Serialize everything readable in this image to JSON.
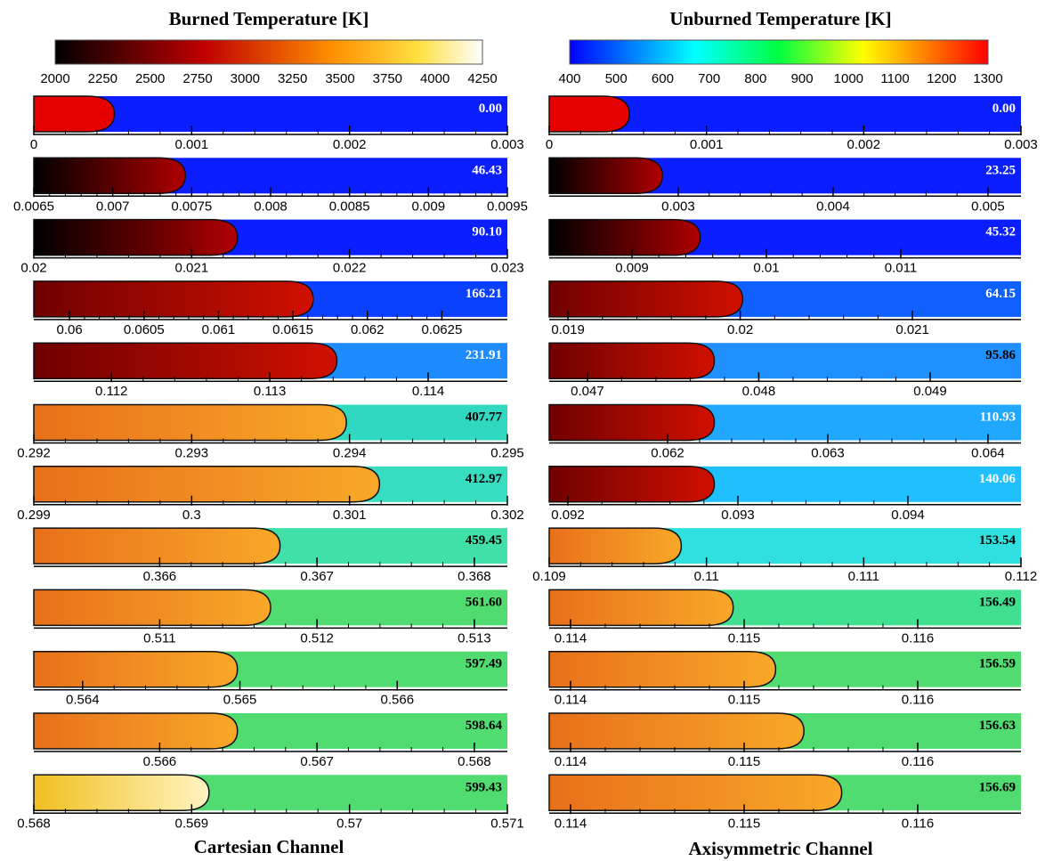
{
  "left": {
    "colorbar": {
      "title": "Burned Temperature [K]",
      "lim": [
        2000,
        4250
      ],
      "ticks": [
        2000,
        2250,
        2500,
        2750,
        3000,
        3250,
        3500,
        3750,
        4000,
        4250
      ]
    },
    "caption": "Cartesian Channel",
    "panels": [
      {
        "time": "0.00",
        "xlim": [
          0,
          0.003
        ],
        "xticks": [
          0,
          0.001,
          0.002,
          0.003
        ]
      },
      {
        "time": "46.43",
        "xlim": [
          0.0065,
          0.0095
        ],
        "xticks": [
          0.0065,
          0.007,
          0.0075,
          0.008,
          0.0085,
          0.009,
          0.0095
        ]
      },
      {
        "time": "90.10",
        "xlim": [
          0.02,
          0.023
        ],
        "xticks": [
          0.02,
          0.021,
          0.022,
          0.023
        ]
      },
      {
        "time": "166.21",
        "xlim": [
          0.05976,
          0.06294
        ],
        "xticks": [
          0.06,
          0.0605,
          0.061,
          0.0615,
          0.062,
          0.0625
        ]
      },
      {
        "time": "231.91",
        "xlim": [
          0.11151,
          0.1145
        ],
        "xticks": [
          0.112,
          0.113,
          0.114
        ]
      },
      {
        "time": "407.77",
        "xlim": [
          0.292,
          0.295
        ],
        "xticks": [
          0.292,
          0.293,
          0.294,
          0.295
        ]
      },
      {
        "time": "412.97",
        "xlim": [
          0.299,
          0.302
        ],
        "xticks": [
          0.299,
          0.3,
          0.301,
          0.302
        ]
      },
      {
        "time": "459.45",
        "xlim": [
          0.3652,
          0.36821
        ],
        "xticks": [
          0.366,
          0.367,
          0.368
        ]
      },
      {
        "time": "561.60",
        "xlim": [
          0.5102,
          0.51321
        ],
        "xticks": [
          0.511,
          0.512,
          0.513
        ]
      },
      {
        "time": "597.49",
        "xlim": [
          0.56369,
          0.5667
        ],
        "xticks": [
          0.564,
          0.565,
          0.566
        ]
      },
      {
        "time": "598.64",
        "xlim": [
          0.5652,
          0.56821
        ],
        "xticks": [
          0.566,
          0.567,
          0.568
        ]
      },
      {
        "time": "599.43",
        "xlim": [
          0.568,
          0.571
        ],
        "xticks": [
          0.568,
          0.569,
          0.57,
          0.571
        ]
      }
    ]
  },
  "right": {
    "colorbar": {
      "title": "Unburned Temperature [K]",
      "lim": [
        400,
        1300
      ],
      "ticks": [
        400,
        500,
        600,
        700,
        800,
        900,
        1000,
        1100,
        1200,
        1300
      ]
    },
    "caption": "Axisymmetric Channel",
    "panels": [
      {
        "time": "0.00",
        "xlim": [
          0,
          0.003
        ],
        "xticks": [
          0,
          0.001,
          0.002,
          0.003
        ]
      },
      {
        "time": "23.25",
        "xlim": [
          0.002167,
          0.005213
        ],
        "xticks": [
          0.003,
          0.004,
          0.005
        ]
      },
      {
        "time": "45.32",
        "xlim": [
          0.008384,
          0.011894
        ],
        "xticks": [
          0.009,
          0.01,
          0.011
        ]
      },
      {
        "time": "64.15",
        "xlim": [
          0.018891,
          0.02163
        ],
        "xticks": [
          0.019,
          0.02,
          0.021
        ]
      },
      {
        "time": "95.86",
        "xlim": [
          0.046777,
          0.04953
        ],
        "xticks": [
          0.047,
          0.048,
          0.049
        ]
      },
      {
        "time": "110.93",
        "xlim": [
          0.061261,
          0.064206
        ],
        "xticks": [
          0.062,
          0.063,
          0.064
        ]
      },
      {
        "time": "140.06",
        "xlim": [
          0.09189,
          0.094665
        ],
        "xticks": [
          0.092,
          0.093,
          0.094
        ]
      },
      {
        "time": "153.54",
        "xlim": [
          0.109,
          0.112
        ],
        "xticks": [
          0.109,
          0.11,
          0.111,
          0.112
        ]
      },
      {
        "time": "156.49",
        "xlim": [
          0.113877,
          0.116595
        ],
        "xticks": [
          0.114,
          0.115,
          0.116
        ]
      },
      {
        "time": "156.59",
        "xlim": [
          0.113877,
          0.116595
        ],
        "xticks": [
          0.114,
          0.115,
          0.116
        ]
      },
      {
        "time": "156.63",
        "xlim": [
          0.113877,
          0.116595
        ],
        "xticks": [
          0.114,
          0.115,
          0.116
        ]
      },
      {
        "time": "156.69",
        "xlim": [
          0.113877,
          0.116595
        ],
        "xticks": [
          0.114,
          0.115,
          0.116
        ]
      }
    ]
  }
}
